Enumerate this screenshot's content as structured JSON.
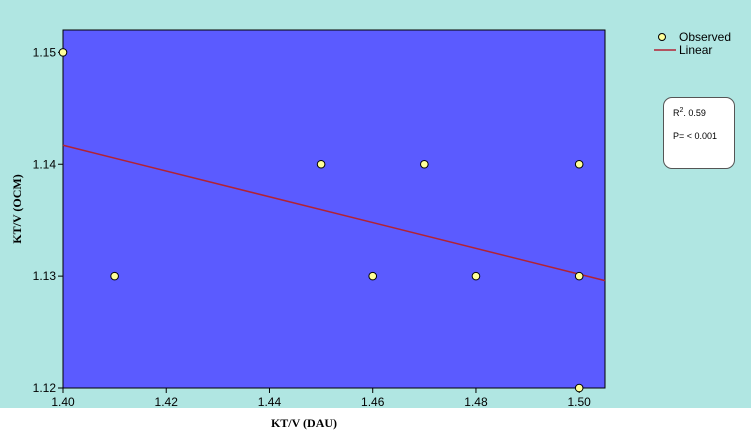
{
  "chart_data": {
    "type": "scatter",
    "xlabel": "KT/V (DAU)",
    "ylabel": "KT/V (OCM)",
    "xlim": [
      1.4,
      1.505
    ],
    "ylim": [
      1.12,
      1.152
    ],
    "x_ticks": [
      "1.40",
      "1.42",
      "1.44",
      "1.46",
      "1.48",
      "1.50"
    ],
    "y_ticks": [
      "1.12",
      "1.13",
      "1.14",
      "1.15"
    ],
    "grid": false,
    "background_color": "#5b5bff",
    "outer_background_color": "#b0e6e2",
    "series": [
      {
        "name": "Observed",
        "type": "scatter",
        "color": "#ffff99",
        "points": [
          {
            "x": 1.4,
            "y": 1.15
          },
          {
            "x": 1.41,
            "y": 1.13
          },
          {
            "x": 1.45,
            "y": 1.14
          },
          {
            "x": 1.46,
            "y": 1.13
          },
          {
            "x": 1.47,
            "y": 1.14
          },
          {
            "x": 1.48,
            "y": 1.13
          },
          {
            "x": 1.5,
            "y": 1.14
          },
          {
            "x": 1.5,
            "y": 1.13
          },
          {
            "x": 1.5,
            "y": 1.12
          }
        ]
      },
      {
        "name": "Linear",
        "type": "line",
        "color": "#b22234",
        "points": [
          {
            "x": 1.4,
            "y": 1.1417
          },
          {
            "x": 1.505,
            "y": 1.1296
          }
        ]
      }
    ],
    "legend": {
      "placement": "top-right",
      "entries": [
        {
          "label": "Observed",
          "marker": "circle"
        },
        {
          "label": "Linear",
          "marker": "line"
        }
      ]
    },
    "annotations": {
      "r_squared_label": "R",
      "r_squared_sup": "2",
      "r_squared_value": ". 0.59",
      "p_value": "P= < 0.001"
    }
  }
}
